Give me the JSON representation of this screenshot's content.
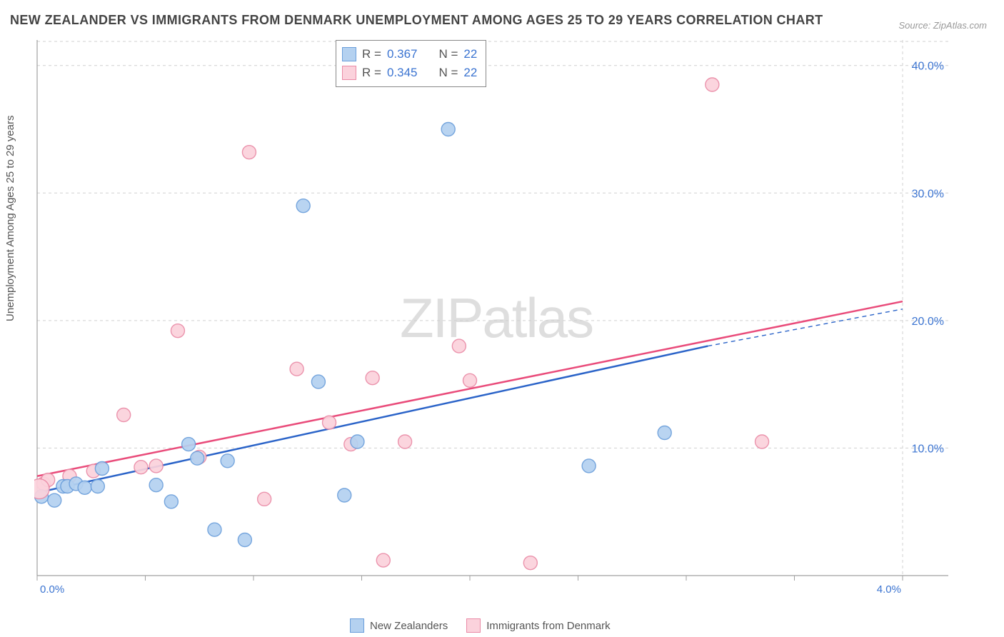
{
  "title": "NEW ZEALANDER VS IMMIGRANTS FROM DENMARK UNEMPLOYMENT AMONG AGES 25 TO 29 YEARS CORRELATION CHART",
  "source": "Source: ZipAtlas.com",
  "ylabel": "Unemployment Among Ages 25 to 29 years",
  "watermark_a": "ZIP",
  "watermark_b": "atlas",
  "chart": {
    "type": "scatter",
    "xlim": [
      0.0,
      4.0
    ],
    "ylim": [
      0.0,
      42.0
    ],
    "yticks": [
      10.0,
      20.0,
      30.0,
      40.0
    ],
    "ytick_labels": [
      "10.0%",
      "20.0%",
      "30.0%",
      "40.0%"
    ],
    "xtick_positions": [
      0.0,
      0.5,
      1.0,
      1.5,
      2.0,
      2.5,
      3.0,
      3.5,
      4.0
    ],
    "xedge_labels": [
      "0.0%",
      "4.0%"
    ],
    "background_color": "#ffffff",
    "grid_color": "#d0d0d0",
    "series": [
      {
        "name": "New Zealanders",
        "color_fill": "#b4d1f0",
        "color_stroke": "#6a9edb",
        "trend_color": "#2a63c8",
        "r": 0.367,
        "n": 22,
        "points": [
          [
            0.02,
            6.2
          ],
          [
            0.08,
            5.9
          ],
          [
            0.12,
            7.0
          ],
          [
            0.14,
            7.0
          ],
          [
            0.18,
            7.2
          ],
          [
            0.22,
            6.9
          ],
          [
            0.28,
            7.0
          ],
          [
            0.3,
            8.4
          ],
          [
            0.55,
            7.1
          ],
          [
            0.62,
            5.8
          ],
          [
            0.7,
            10.3
          ],
          [
            0.74,
            9.2
          ],
          [
            0.82,
            3.6
          ],
          [
            0.88,
            9.0
          ],
          [
            0.96,
            2.8
          ],
          [
            1.23,
            29.0
          ],
          [
            1.3,
            15.2
          ],
          [
            1.42,
            6.3
          ],
          [
            1.48,
            10.5
          ],
          [
            1.9,
            35.0
          ],
          [
            2.55,
            8.6
          ],
          [
            2.9,
            11.2
          ]
        ],
        "trend": {
          "x1": 0.0,
          "y1": 6.5,
          "x2": 3.1,
          "y2": 18.0,
          "x3": 4.0,
          "y3": 20.9
        }
      },
      {
        "name": "Immigrants from Denmark",
        "color_fill": "#fbd2dc",
        "color_stroke": "#ea8aa6",
        "trend_color": "#e94b7a",
        "r": 0.345,
        "n": 22,
        "points": [
          [
            0.03,
            7.2
          ],
          [
            0.05,
            7.5
          ],
          [
            0.15,
            7.8
          ],
          [
            0.26,
            8.2
          ],
          [
            0.4,
            12.6
          ],
          [
            0.48,
            8.5
          ],
          [
            0.55,
            8.6
          ],
          [
            0.65,
            19.2
          ],
          [
            0.75,
            9.3
          ],
          [
            0.98,
            33.2
          ],
          [
            1.05,
            6.0
          ],
          [
            1.2,
            16.2
          ],
          [
            1.35,
            12.0
          ],
          [
            1.45,
            10.3
          ],
          [
            1.55,
            15.5
          ],
          [
            1.6,
            1.2
          ],
          [
            1.7,
            10.5
          ],
          [
            1.95,
            18.0
          ],
          [
            2.0,
            15.3
          ],
          [
            2.28,
            1.0
          ],
          [
            3.12,
            38.5
          ],
          [
            3.35,
            10.5
          ]
        ],
        "trend": {
          "x1": 0.0,
          "y1": 7.8,
          "x2": 4.0,
          "y2": 21.5
        }
      }
    ],
    "bottom_legend": [
      "New Zealanders",
      "Immigrants from Denmark"
    ],
    "top_legend": [
      {
        "r_label": "R =",
        "r_val": "0.367",
        "n_label": "N =",
        "n_val": "22"
      },
      {
        "r_label": "R =",
        "r_val": "0.345",
        "n_label": "N =",
        "n_val": "22"
      }
    ]
  }
}
